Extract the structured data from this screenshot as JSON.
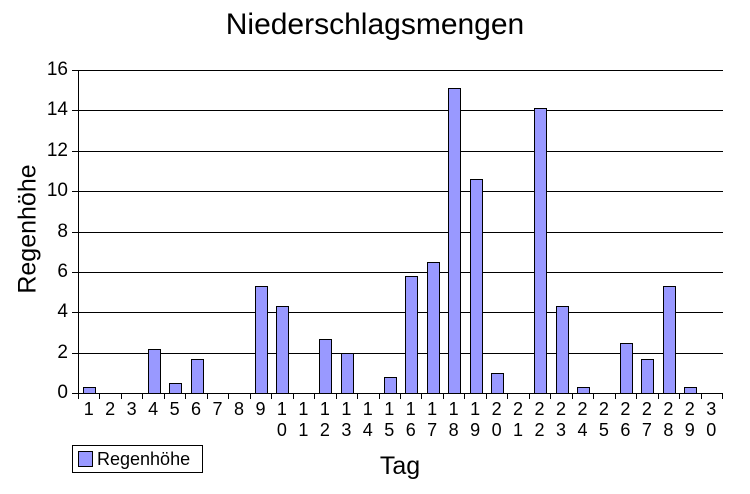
{
  "chart_data": {
    "type": "bar",
    "title": "Niederschlagsmengen",
    "xlabel": "Tag",
    "ylabel": "Regenhöhe",
    "legend": [
      "Regenhöhe"
    ],
    "legend_position": "bottom-left",
    "grid": true,
    "ylim": [
      0,
      16
    ],
    "yticks": [
      0,
      2,
      4,
      6,
      8,
      10,
      12,
      14,
      16
    ],
    "categories": [
      "1",
      "2",
      "3",
      "4",
      "5",
      "6",
      "7",
      "8",
      "9",
      "10",
      "11",
      "12",
      "13",
      "14",
      "15",
      "16",
      "17",
      "18",
      "19",
      "20",
      "21",
      "22",
      "23",
      "24",
      "25",
      "26",
      "27",
      "28",
      "29",
      "30"
    ],
    "values": [
      0.3,
      0,
      0,
      2.2,
      0.5,
      1.7,
      0,
      0,
      5.3,
      4.3,
      0,
      2.7,
      2,
      0,
      0.8,
      5.8,
      6.5,
      15.1,
      10.6,
      1,
      0,
      14.1,
      4.3,
      0.3,
      0,
      2.5,
      1.7,
      5.3,
      0.3,
      0
    ],
    "colors": {
      "bar_fill": "#9999ff",
      "bar_border": "#000000",
      "gridline": "#000000",
      "text": "#000000",
      "background": "#ffffff"
    }
  }
}
